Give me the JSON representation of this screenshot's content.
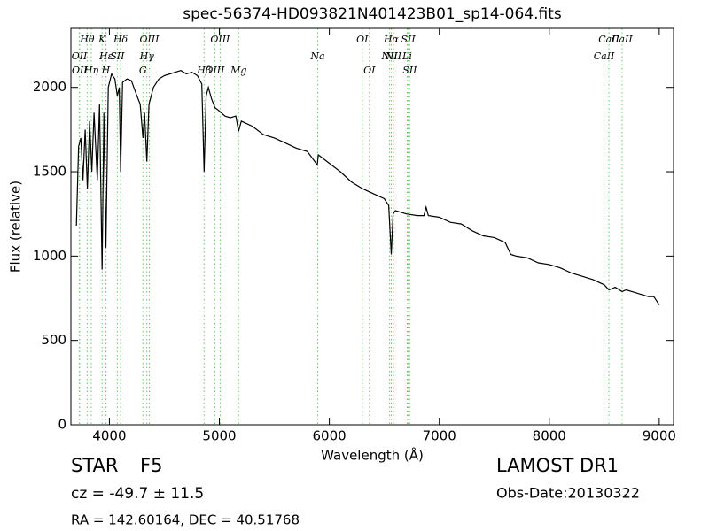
{
  "chart_data": {
    "type": "line",
    "title": "spec-56374-HD093821N401423B01_sp14-064.fits",
    "x_label": "Wavelength (Å)",
    "y_label": "Flux (relative)",
    "xlim": [
      3650,
      9130
    ],
    "ylim": [
      0,
      2350
    ],
    "xticks": [
      4000,
      5000,
      6000,
      7000,
      8000,
      9000
    ],
    "yticks": [
      0,
      500,
      1000,
      1500,
      2000
    ],
    "color": "#000000",
    "line_color": "#66cc66",
    "x": [
      3700,
      3720,
      3740,
      3760,
      3780,
      3800,
      3820,
      3840,
      3860,
      3890,
      3910,
      3934,
      3950,
      3968,
      3990,
      4020,
      4050,
      4072,
      4090,
      4102,
      4120,
      4160,
      4200,
      4250,
      4280,
      4305,
      4320,
      4341,
      4360,
      4400,
      4450,
      4500,
      4550,
      4600,
      4650,
      4700,
      4750,
      4800,
      4840,
      4861,
      4880,
      4900,
      4930,
      4960,
      5000,
      5050,
      5100,
      5150,
      5175,
      5200,
      5300,
      5400,
      5500,
      5600,
      5700,
      5800,
      5890,
      5900,
      6000,
      6100,
      6200,
      6300,
      6400,
      6500,
      6540,
      6563,
      6580,
      6600,
      6700,
      6800,
      6860,
      6880,
      6900,
      7000,
      7100,
      7200,
      7300,
      7400,
      7500,
      7600,
      7650,
      7700,
      7800,
      7900,
      8000,
      8100,
      8200,
      8300,
      8400,
      8500,
      8542,
      8600,
      8662,
      8700,
      8800,
      8900,
      8950,
      9000
    ],
    "values": [
      1180,
      1650,
      1700,
      1450,
      1750,
      1400,
      1800,
      1500,
      1850,
      1450,
      1900,
      920,
      1850,
      1050,
      2000,
      2080,
      2050,
      1950,
      2000,
      1500,
      2030,
      2050,
      2040,
      1950,
      1900,
      1700,
      1850,
      1560,
      1900,
      2000,
      2050,
      2070,
      2080,
      2090,
      2100,
      2080,
      2090,
      2070,
      2020,
      1500,
      1950,
      2000,
      1930,
      1880,
      1860,
      1830,
      1820,
      1830,
      1740,
      1800,
      1770,
      1720,
      1700,
      1670,
      1640,
      1620,
      1540,
      1600,
      1550,
      1500,
      1440,
      1400,
      1370,
      1340,
      1300,
      1010,
      1250,
      1270,
      1250,
      1240,
      1240,
      1290,
      1240,
      1230,
      1200,
      1190,
      1150,
      1120,
      1110,
      1080,
      1010,
      1000,
      990,
      960,
      950,
      930,
      900,
      880,
      860,
      830,
      800,
      815,
      790,
      800,
      780,
      760,
      760,
      710
    ],
    "lines": [
      {
        "wavelength": 3798,
        "label": "Hθ"
      },
      {
        "wavelength": 3727,
        "label": "OII"
      },
      {
        "wavelength": 3729,
        "label": "OII"
      },
      {
        "wavelength": 3934,
        "label": "K"
      },
      {
        "wavelength": 3970,
        "label": "Hε"
      },
      {
        "wavelength": 3835,
        "label": "Hη"
      },
      {
        "wavelength": 4102,
        "label": "Hδ"
      },
      {
        "wavelength": 4072,
        "label": "SII"
      },
      {
        "wavelength": 3968,
        "label": "H"
      },
      {
        "wavelength": 4363,
        "label": "OIII"
      },
      {
        "wavelength": 4341,
        "label": "Hγ"
      },
      {
        "wavelength": 4305,
        "label": "G"
      },
      {
        "wavelength": 5007,
        "label": "OIII"
      },
      {
        "wavelength": 5894,
        "label": "Na"
      },
      {
        "wavelength": 4861,
        "label": "Hβ"
      },
      {
        "wavelength": 6300,
        "label": "OI"
      },
      {
        "wavelength": 6548,
        "label": "NII"
      },
      {
        "wavelength": 4959,
        "label": "OIII"
      },
      {
        "wavelength": 6563,
        "label": "Hα"
      },
      {
        "wavelength": 6708,
        "label": "Li"
      },
      {
        "wavelength": 5175,
        "label": "Mg"
      },
      {
        "wavelength": 6717,
        "label": "SII"
      },
      {
        "wavelength": 8498,
        "label": "CaII"
      },
      {
        "wavelength": 6364,
        "label": "OI"
      },
      {
        "wavelength": 8542,
        "label": "CaII"
      },
      {
        "wavelength": 6583,
        "label": "NII"
      },
      {
        "wavelength": 6731,
        "label": "SII"
      },
      {
        "wavelength": 8662,
        "label": "CaII"
      }
    ],
    "info": {
      "class": "STAR",
      "subclass": "F5",
      "redshift": "cz = -49.7 ± 11.5",
      "coords": "RA = 142.60164, DEC = 40.51768",
      "survey": "LAMOST DR1",
      "date": "Obs-Date:20130322"
    }
  }
}
